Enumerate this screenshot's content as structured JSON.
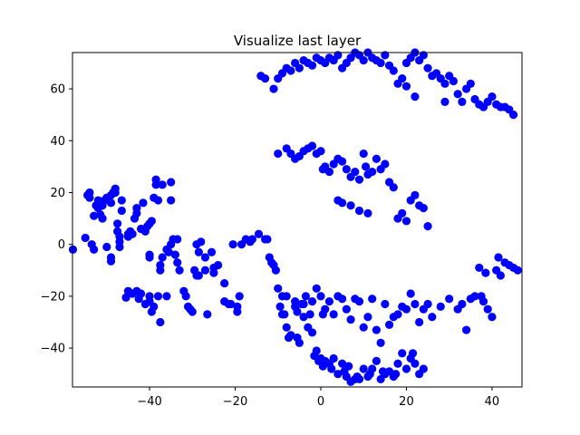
{
  "chart_data": {
    "type": "scatter",
    "title": "Visualize last layer",
    "xlabel": "",
    "ylabel": "",
    "xlim": [
      -58,
      47
    ],
    "ylim": [
      -55,
      74
    ],
    "xticks": [
      -40,
      -20,
      0,
      20,
      40
    ],
    "xtick_labels": [
      "−40",
      "−20",
      "0",
      "20",
      "40"
    ],
    "yticks": [
      -40,
      -20,
      0,
      20,
      40,
      60
    ],
    "ytick_labels": [
      "−40",
      "−20",
      "0",
      "20",
      "40",
      "60"
    ],
    "grid": false,
    "legend": "none",
    "marker_color": "#0000ff",
    "points": [
      [
        -57.9,
        -2
      ],
      [
        -55,
        2.5
      ],
      [
        -54.5,
        19
      ],
      [
        -54,
        18
      ],
      [
        -54,
        20
      ],
      [
        -53.5,
        0
      ],
      [
        -53,
        -2
      ],
      [
        -53,
        11
      ],
      [
        -52.5,
        15
      ],
      [
        -52,
        14
      ],
      [
        -52,
        17
      ],
      [
        -51.5,
        11.5
      ],
      [
        -51,
        10
      ],
      [
        -51,
        15
      ],
      [
        -50.5,
        17
      ],
      [
        -50,
        18
      ],
      [
        -50,
        -1
      ],
      [
        -49,
        16
      ],
      [
        -49,
        19
      ],
      [
        -48.5,
        20
      ],
      [
        -49,
        -5
      ],
      [
        -49,
        -6.5
      ],
      [
        -48,
        20
      ],
      [
        -48,
        21.5
      ],
      [
        -47.5,
        8
      ],
      [
        -47.5,
        5
      ],
      [
        -47,
        1
      ],
      [
        -47,
        -1
      ],
      [
        -47,
        3
      ],
      [
        -46.5,
        17
      ],
      [
        -46.5,
        13
      ],
      [
        -45.5,
        -20.5
      ],
      [
        -45,
        -18
      ],
      [
        -45,
        3
      ],
      [
        -45,
        4
      ],
      [
        -44.5,
        5
      ],
      [
        -44,
        -19
      ],
      [
        -44,
        4
      ],
      [
        -43.5,
        10
      ],
      [
        -43,
        14
      ],
      [
        -43,
        12
      ],
      [
        -43,
        -18
      ],
      [
        -42.5,
        -21
      ],
      [
        -42,
        6
      ],
      [
        -42,
        -19
      ],
      [
        -41.5,
        16
      ],
      [
        -41,
        5
      ],
      [
        -41,
        -23
      ],
      [
        -40.5,
        7
      ],
      [
        -40,
        8
      ],
      [
        -40,
        -22
      ],
      [
        -40,
        -5
      ],
      [
        -40,
        -4
      ],
      [
        -40,
        -20
      ],
      [
        -39.5,
        9
      ],
      [
        -39.5,
        -26
      ],
      [
        -39,
        18
      ],
      [
        -39,
        -24
      ],
      [
        -38.5,
        23
      ],
      [
        -38.5,
        25
      ],
      [
        -38,
        17
      ],
      [
        -38,
        -20
      ],
      [
        -37.5,
        -30
      ],
      [
        -37.5,
        -10
      ],
      [
        -37.5,
        -8
      ],
      [
        -37,
        -5
      ],
      [
        -37,
        23
      ],
      [
        -36,
        -2
      ],
      [
        -36,
        -20
      ],
      [
        -35.5,
        -3
      ],
      [
        -35,
        24
      ],
      [
        -35,
        17
      ],
      [
        -35,
        0
      ],
      [
        -34.5,
        2
      ],
      [
        -34,
        -4
      ],
      [
        -33.5,
        2
      ],
      [
        -33.5,
        -7
      ],
      [
        -33,
        -10
      ],
      [
        -32,
        -18
      ],
      [
        -31.5,
        -20
      ],
      [
        -31,
        -24
      ],
      [
        -30.5,
        -25
      ],
      [
        -30,
        -26
      ],
      [
        -29.5,
        -10
      ],
      [
        -29,
        -12
      ],
      [
        -28.5,
        -12
      ],
      [
        -29,
        0
      ],
      [
        -28.5,
        -3
      ],
      [
        -28,
        1
      ],
      [
        -27,
        -5
      ],
      [
        -27,
        -10
      ],
      [
        -26.5,
        -27
      ],
      [
        -25.5,
        -3
      ],
      [
        -25,
        -9
      ],
      [
        -25,
        -11
      ],
      [
        -24,
        -8
      ],
      [
        -22.5,
        -15
      ],
      [
        -22.5,
        -22
      ],
      [
        -21.5,
        -23
      ],
      [
        -21,
        -23
      ],
      [
        -20.5,
        0
      ],
      [
        -19.5,
        -24
      ],
      [
        -19.5,
        -26
      ],
      [
        -19,
        -20
      ],
      [
        -18.5,
        0
      ],
      [
        -17.5,
        2
      ],
      [
        -16.5,
        1
      ],
      [
        -16,
        2
      ],
      [
        -14.5,
        4
      ],
      [
        -13,
        2
      ],
      [
        -12.5,
        2
      ],
      [
        -12,
        -5
      ],
      [
        -11.5,
        -7
      ],
      [
        -11,
        -8
      ],
      [
        -10.5,
        -10
      ],
      [
        -10,
        -17
      ],
      [
        -9.5,
        -24
      ],
      [
        -9,
        -27
      ],
      [
        -8.5,
        -27
      ],
      [
        -8,
        -32
      ],
      [
        -7.5,
        -36
      ],
      [
        -7,
        -35
      ],
      [
        -6,
        -22
      ],
      [
        -5.5,
        -26
      ],
      [
        -5.5,
        -36
      ],
      [
        -5,
        -38
      ],
      [
        -4.5,
        -23
      ],
      [
        -4,
        -28
      ],
      [
        -3,
        -32
      ],
      [
        -2.5,
        -27
      ],
      [
        -2,
        -34
      ],
      [
        -1.5,
        -43
      ],
      [
        -1,
        -41
      ],
      [
        -0.5,
        -45
      ],
      [
        0,
        -44
      ],
      [
        0.5,
        -47
      ],
      [
        1,
        -45
      ],
      [
        2,
        -46
      ],
      [
        2.5,
        -48
      ],
      [
        3,
        -44
      ],
      [
        4,
        -50
      ],
      [
        5,
        -46
      ],
      [
        5.5,
        -49
      ],
      [
        6,
        -51
      ],
      [
        6.5,
        -47
      ],
      [
        7,
        -53
      ],
      [
        8,
        -52
      ],
      [
        8.5,
        -51
      ],
      [
        9,
        -52
      ],
      [
        10,
        -48
      ],
      [
        11,
        -51
      ],
      [
        11.5,
        -50
      ],
      [
        12,
        -48
      ],
      [
        13,
        -45
      ],
      [
        14,
        -52
      ],
      [
        14.5,
        -49
      ],
      [
        15,
        -50
      ],
      [
        16,
        -49
      ],
      [
        17,
        -51
      ],
      [
        17.5,
        -50
      ],
      [
        18,
        -46
      ],
      [
        19,
        -42
      ],
      [
        20,
        -48
      ],
      [
        21,
        -44
      ],
      [
        21.5,
        -42
      ],
      [
        22,
        -46
      ],
      [
        23,
        -50
      ],
      [
        24,
        -48
      ],
      [
        -9,
        -20
      ],
      [
        -8,
        -20
      ],
      [
        -6,
        -24
      ],
      [
        -4,
        -23
      ],
      [
        -3.5,
        -20
      ],
      [
        -2,
        -22
      ],
      [
        -1,
        -17
      ],
      [
        0,
        -20
      ],
      [
        0.5,
        -27
      ],
      [
        1,
        -25
      ],
      [
        2,
        -22
      ],
      [
        3,
        -27
      ],
      [
        4,
        -20
      ],
      [
        5,
        -21
      ],
      [
        6,
        -25
      ],
      [
        7,
        -29
      ],
      [
        8,
        -21
      ],
      [
        9,
        -22
      ],
      [
        10,
        -32
      ],
      [
        11,
        -28
      ],
      [
        12,
        -21
      ],
      [
        13,
        -33
      ],
      [
        14,
        -38
      ],
      [
        15,
        -23
      ],
      [
        16,
        -31
      ],
      [
        17,
        -28
      ],
      [
        18,
        -27
      ],
      [
        19,
        -24
      ],
      [
        20,
        -25
      ],
      [
        21,
        -19
      ],
      [
        22,
        -23
      ],
      [
        23,
        -30
      ],
      [
        24,
        -25
      ],
      [
        25,
        -23
      ],
      [
        26,
        -28
      ],
      [
        28,
        -24
      ],
      [
        30,
        -21
      ],
      [
        32,
        -25
      ],
      [
        33,
        -23
      ],
      [
        34,
        -33
      ],
      [
        35,
        -21
      ],
      [
        36,
        -20
      ],
      [
        37,
        -9
      ],
      [
        37.5,
        -20
      ],
      [
        38,
        -22
      ],
      [
        38.5,
        -11
      ],
      [
        39,
        -25
      ],
      [
        40,
        -28
      ],
      [
        41,
        -10
      ],
      [
        41.5,
        -5
      ],
      [
        42,
        -12
      ],
      [
        43,
        -7
      ],
      [
        44,
        -8
      ],
      [
        45,
        -9
      ],
      [
        46,
        -10
      ],
      [
        -10,
        35
      ],
      [
        -8,
        37
      ],
      [
        -7,
        35
      ],
      [
        -6,
        33
      ],
      [
        -5,
        34
      ],
      [
        -4,
        36
      ],
      [
        -3,
        37
      ],
      [
        -2,
        38
      ],
      [
        -1,
        35
      ],
      [
        0,
        36
      ],
      [
        0.5,
        29
      ],
      [
        1,
        30
      ],
      [
        2,
        28
      ],
      [
        3,
        31
      ],
      [
        4,
        33
      ],
      [
        5,
        32
      ],
      [
        6,
        29
      ],
      [
        7,
        26
      ],
      [
        8,
        28
      ],
      [
        9,
        25
      ],
      [
        10,
        35
      ],
      [
        10.5,
        30
      ],
      [
        11,
        27
      ],
      [
        12,
        28
      ],
      [
        13,
        33
      ],
      [
        14,
        29
      ],
      [
        15,
        31
      ],
      [
        16,
        24
      ],
      [
        17,
        22
      ],
      [
        18,
        10
      ],
      [
        19,
        12
      ],
      [
        20,
        9
      ],
      [
        21,
        17
      ],
      [
        22,
        19
      ],
      [
        23,
        15
      ],
      [
        24,
        14
      ],
      [
        25,
        7
      ],
      [
        4,
        17
      ],
      [
        5,
        16
      ],
      [
        7,
        15
      ],
      [
        9,
        13
      ],
      [
        11,
        12
      ],
      [
        -14,
        65
      ],
      [
        -13,
        64
      ],
      [
        -11,
        60
      ],
      [
        -10,
        64
      ],
      [
        -9,
        66
      ],
      [
        -8,
        68
      ],
      [
        -7,
        67
      ],
      [
        -6,
        70
      ],
      [
        -5,
        68
      ],
      [
        -4,
        71
      ],
      [
        -3,
        70
      ],
      [
        -2,
        69
      ],
      [
        -1,
        72
      ],
      [
        0,
        71
      ],
      [
        1,
        70
      ],
      [
        2,
        72
      ],
      [
        3,
        71
      ],
      [
        4,
        73
      ],
      [
        5,
        68
      ],
      [
        6,
        70
      ],
      [
        7,
        72
      ],
      [
        8,
        74
      ],
      [
        9,
        73
      ],
      [
        10,
        71
      ],
      [
        11,
        74
      ],
      [
        12,
        72
      ],
      [
        13,
        71
      ],
      [
        14,
        70
      ],
      [
        15,
        73
      ],
      [
        16,
        69
      ],
      [
        17,
        67
      ],
      [
        18,
        62
      ],
      [
        19,
        64
      ],
      [
        20,
        70
      ],
      [
        21,
        72
      ],
      [
        22,
        74
      ],
      [
        23,
        71
      ],
      [
        24,
        73
      ],
      [
        25,
        68
      ],
      [
        26,
        65
      ],
      [
        27,
        66
      ],
      [
        28,
        64
      ],
      [
        29,
        62
      ],
      [
        30,
        65
      ],
      [
        31,
        63
      ],
      [
        32,
        58
      ],
      [
        33,
        55
      ],
      [
        34,
        60
      ],
      [
        35,
        62
      ],
      [
        36,
        56
      ],
      [
        37,
        54
      ],
      [
        38,
        53
      ],
      [
        39,
        55
      ],
      [
        40,
        57
      ],
      [
        41,
        54
      ],
      [
        42,
        53
      ],
      [
        43,
        53
      ],
      [
        44,
        52
      ],
      [
        45,
        50
      ],
      [
        20,
        61
      ],
      [
        22,
        57
      ],
      [
        29,
        55
      ]
    ]
  }
}
